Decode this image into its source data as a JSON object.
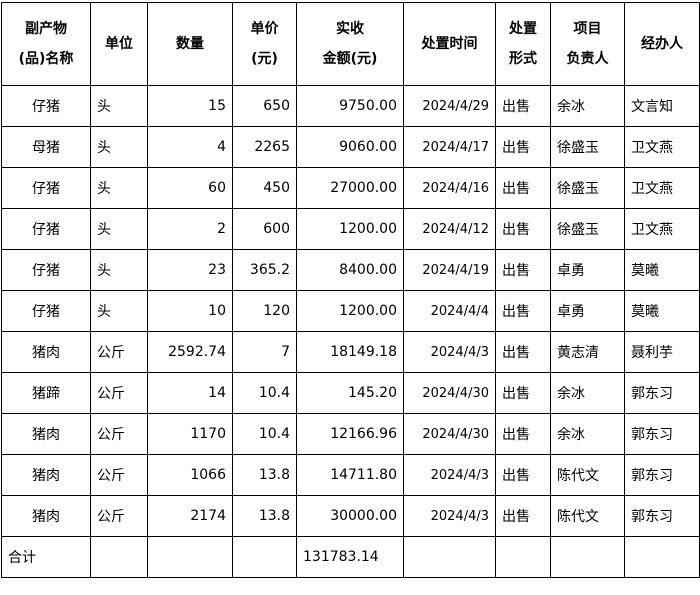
{
  "headers": [
    [
      "副产物",
      "(品)名称"
    ],
    [
      "单位"
    ],
    [
      "数量"
    ],
    [
      "单价",
      "(元)"
    ],
    [
      "实收",
      "金额(元)"
    ],
    [
      "处置时间"
    ],
    [
      "处置",
      "形式"
    ],
    [
      "项目",
      "负责人"
    ],
    [
      "经办人"
    ]
  ],
  "rows": [
    [
      "仔猪",
      "头",
      "15",
      "650",
      "9750.00",
      "2024/4/29",
      "出售",
      "余冰",
      "文言知"
    ],
    [
      "母猪",
      "头",
      "4",
      "2265",
      "9060.00",
      "2024/4/17",
      "出售",
      "徐盛玉",
      "卫文燕"
    ],
    [
      "仔猪",
      "头",
      "60",
      "450",
      "27000.00",
      "2024/4/16",
      "出售",
      "徐盛玉",
      "卫文燕"
    ],
    [
      "仔猪",
      "头",
      "2",
      "600",
      "1200.00",
      "2024/4/12",
      "出售",
      "徐盛玉",
      "卫文燕"
    ],
    [
      "仔猪",
      "头",
      "23",
      "365.2",
      "8400.00",
      "2024/4/19",
      "出售",
      "卓勇",
      "莫曦"
    ],
    [
      "仔猪",
      "头",
      "10",
      "120",
      "1200.00",
      "2024/4/4",
      "出售",
      "卓勇",
      "莫曦"
    ],
    [
      "猪肉",
      "公斤",
      "2592.74",
      "7",
      "18149.18",
      "2024/4/3",
      "出售",
      "黄志清",
      "聂利芋"
    ],
    [
      "猪蹄",
      "公斤",
      "14",
      "10.4",
      "145.20",
      "2024/4/30",
      "出售",
      "余冰",
      "郭东习"
    ],
    [
      "猪肉",
      "公斤",
      "1170",
      "10.4",
      "12166.96",
      "2024/4/30",
      "出售",
      "余冰",
      "郭东习"
    ],
    [
      "猪肉",
      "公斤",
      "1066",
      "13.8",
      "14711.80",
      "2024/4/3",
      "出售",
      "陈代文",
      "郭东习"
    ],
    [
      "猪肉",
      "公斤",
      "2174",
      "13.8",
      "30000.00",
      "2024/4/3",
      "出售",
      "陈代文",
      "郭东习"
    ]
  ],
  "total": {
    "label": "合计",
    "amount": "131783.14"
  }
}
